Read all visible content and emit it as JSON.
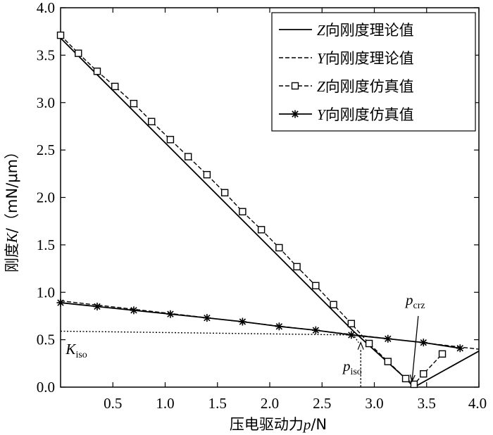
{
  "chart_data": {
    "type": "line",
    "xlabel": "压电驱动力p/N",
    "ylabel": "刚度K/（mN/μm）",
    "xlim": [
      0,
      4
    ],
    "ylim": [
      0,
      4
    ],
    "xticks": [
      "0.5",
      "1.0",
      "1.5",
      "2.0",
      "2.5",
      "3.0",
      "3.5",
      "4.0"
    ],
    "yticks": [
      "0.0",
      "0.5",
      "1.0",
      "1.5",
      "2.0",
      "2.5",
      "3.0",
      "3.5",
      "4.0"
    ],
    "grid": false,
    "legend_position": "top-right",
    "series": [
      {
        "name": "Z向刚度理论值",
        "style": "solid",
        "marker": "none",
        "x": [
          0.0,
          2.8,
          3.3,
          3.38,
          4.0
        ],
        "y": [
          3.68,
          0.59,
          0.09,
          0.0,
          0.38
        ]
      },
      {
        "name": "Y向刚度理论值",
        "style": "dashed",
        "marker": "none",
        "x": [
          0.0,
          4.0
        ],
        "y": [
          0.91,
          0.4
        ]
      },
      {
        "name": "Z向刚度仿真值",
        "style": "dashed",
        "marker": "square",
        "x": [
          0.0,
          0.17,
          0.35,
          0.52,
          0.7,
          0.87,
          1.05,
          1.22,
          1.4,
          1.57,
          1.74,
          1.92,
          2.09,
          2.26,
          2.44,
          2.61,
          2.78,
          2.95,
          3.13,
          3.3,
          3.38,
          3.47,
          3.65
        ],
        "y": [
          3.71,
          3.52,
          3.33,
          3.17,
          2.99,
          2.8,
          2.61,
          2.43,
          2.24,
          2.05,
          1.85,
          1.66,
          1.47,
          1.27,
          1.07,
          0.87,
          0.67,
          0.46,
          0.27,
          0.09,
          0.03,
          0.14,
          0.35
        ]
      },
      {
        "name": "Y向刚度仿真值",
        "style": "solid",
        "marker": "asterisk",
        "x": [
          0.0,
          0.35,
          0.7,
          1.05,
          1.4,
          1.74,
          2.09,
          2.44,
          2.78,
          3.13,
          3.47,
          3.82
        ],
        "y": [
          0.89,
          0.85,
          0.81,
          0.77,
          0.73,
          0.69,
          0.64,
          0.6,
          0.55,
          0.51,
          0.47,
          0.41
        ]
      },
      {
        "style": "dotted",
        "marker": "none",
        "x": [
          0.0,
          2.8,
          2.85
        ],
        "y": [
          0.59,
          0.55,
          0.47
        ]
      }
    ],
    "annotations": [
      {
        "text": "K",
        "sub": "iso",
        "x": 0.05,
        "y": 0.35
      },
      {
        "text": "p",
        "sub": "iso",
        "x": 2.7,
        "y": 0.17
      },
      {
        "text": "p",
        "sub": "crz",
        "x": 3.3,
        "y": 0.87
      }
    ],
    "reference_line": {
      "x": 2.87,
      "y_from": 0.0,
      "y_to": 0.47
    }
  }
}
